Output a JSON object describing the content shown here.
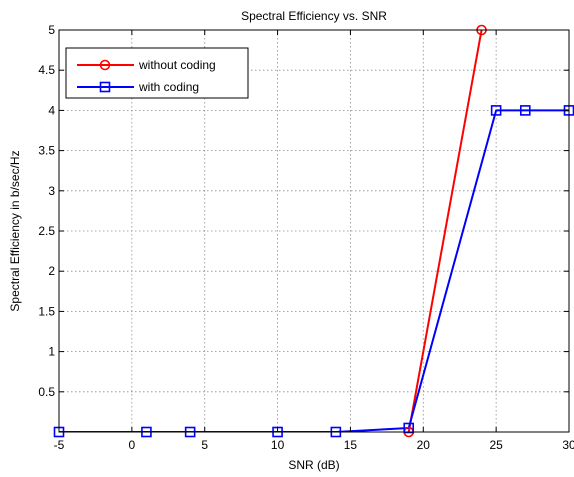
{
  "chart_data": {
    "type": "line",
    "title": "Spectral Efficiency vs. SNR",
    "xlabel": "SNR (dB)",
    "ylabel": "Spectral Efficiency in b/sec/Hz",
    "xlim": [
      -5,
      30
    ],
    "ylim": [
      0,
      5
    ],
    "xticks": [
      -5,
      0,
      5,
      10,
      15,
      20,
      25,
      30
    ],
    "xtick_labels": [
      "-5",
      "0",
      "5",
      "10",
      "15",
      "20",
      "25",
      "30"
    ],
    "yticks": [
      0.5,
      1,
      1.5,
      2,
      2.5,
      3,
      3.5,
      4,
      4.5,
      5
    ],
    "ytick_labels": [
      "0.5",
      "1",
      "1.5",
      "2",
      "2.5",
      "3",
      "3.5",
      "4",
      "4.5",
      "5"
    ],
    "grid": true,
    "legend_position": "top-left",
    "series": [
      {
        "name": "without coding",
        "color": "#ff0000",
        "marker": "circle",
        "x": [
          19,
          24
        ],
        "y": [
          0,
          5
        ]
      },
      {
        "name": "with coding",
        "color": "#0000ff",
        "marker": "square",
        "x": [
          -5,
          1,
          4,
          10,
          14,
          19,
          25,
          27,
          30
        ],
        "y": [
          0,
          0,
          0,
          0,
          0,
          0.05,
          4,
          4,
          4
        ]
      }
    ]
  }
}
